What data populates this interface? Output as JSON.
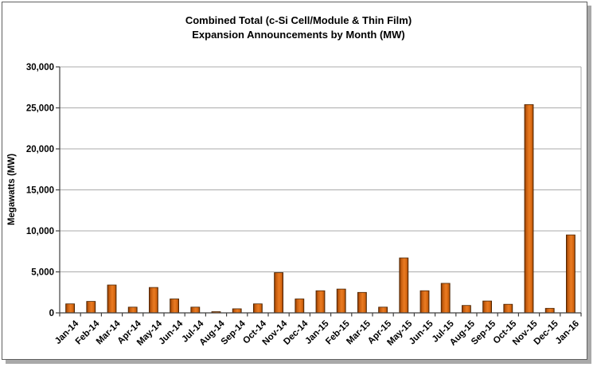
{
  "title": {
    "line1": "Combined Total (c-Si Cell/Module & Thin Film)",
    "line2": "Expansion Announcements by Month (MW)"
  },
  "chart_data": {
    "type": "bar",
    "title": "Combined Total (c-Si Cell/Module & Thin Film) Expansion Announcements by Month (MW)",
    "xlabel": "",
    "ylabel": "Megawatts (MW)",
    "ylim": [
      0,
      30000
    ],
    "ytick_step": 5000,
    "ytick_labels": [
      "0",
      "5,000",
      "10,000",
      "15,000",
      "20,000",
      "25,000",
      "30,000"
    ],
    "grid": true,
    "legend": false,
    "categories": [
      "Jan-14",
      "Feb-14",
      "Mar-14",
      "Apr-14",
      "May-14",
      "Jun-14",
      "Jul-14",
      "Aug-14",
      "Sep-14",
      "Oct-14",
      "Nov-14",
      "Dec-14",
      "Jan-15",
      "Feb-15",
      "Mar-15",
      "Apr-15",
      "May-15",
      "Jun-15",
      "Jul-15",
      "Aug-15",
      "Sep-15",
      "Oct-15",
      "Nov-15",
      "Dec-15",
      "Jan-16"
    ],
    "values": [
      1100,
      1400,
      3400,
      700,
      3100,
      1700,
      700,
      150,
      500,
      1100,
      4900,
      1700,
      2700,
      2900,
      2500,
      700,
      6700,
      2700,
      3600,
      900,
      1450,
      1050,
      25400,
      550,
      9500
    ]
  },
  "colors": {
    "bar_gradient": [
      "#7e3300",
      "#c85f10",
      "#ea7b22",
      "#d2640e",
      "#6f2d00"
    ],
    "bar_border": "#4a2300",
    "gridline": "#ababab",
    "plot_border": "#ababab",
    "axis": "#3f3f3f",
    "frame_border": "#5f5f5f",
    "frame_shadow": "#a9a9a9",
    "background": "#ffffff",
    "text": "#000000"
  }
}
